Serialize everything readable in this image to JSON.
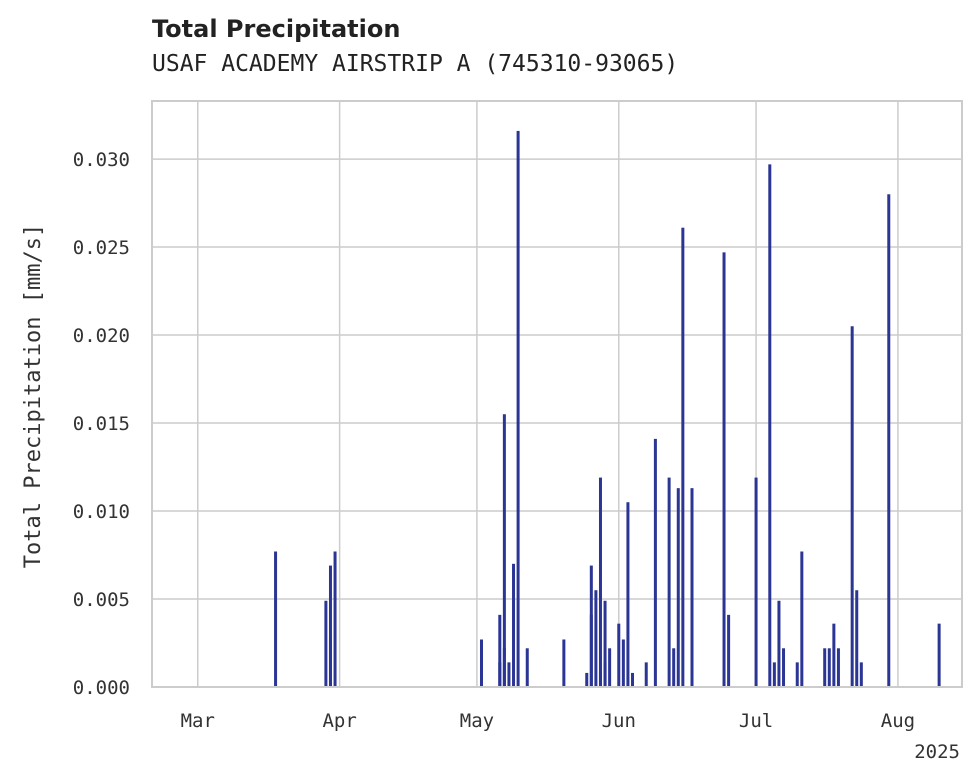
{
  "title": "Total Precipitation",
  "subtitle": "USAF ACADEMY AIRSTRIP A (745310-93065)",
  "chart_data": {
    "type": "bar",
    "ylabel": "Total Precipitation [mm/s]",
    "xlabel": "",
    "year_label": "2025",
    "xlim": [
      "2025-02-19",
      "2025-08-15"
    ],
    "ylim": [
      0,
      0.0333
    ],
    "yticks": [
      "0.000",
      "0.005",
      "0.010",
      "0.015",
      "0.020",
      "0.025",
      "0.030"
    ],
    "xticks": [
      {
        "date": "2025-03-01",
        "label": "Mar"
      },
      {
        "date": "2025-04-01",
        "label": "Apr"
      },
      {
        "date": "2025-05-01",
        "label": "May"
      },
      {
        "date": "2025-06-01",
        "label": "Jun"
      },
      {
        "date": "2025-07-01",
        "label": "Jul"
      },
      {
        "date": "2025-08-01",
        "label": "Aug"
      }
    ],
    "grid": true,
    "colors": {
      "bar": "#2b3594",
      "grid": "#cccccc",
      "frame": "#cccccc"
    },
    "series": [
      {
        "x": [
          "2025-03-18",
          "2025-03-29",
          "2025-03-30",
          "2025-03-30",
          "2025-03-31",
          "2025-05-02",
          "2025-05-06",
          "2025-05-06",
          "2025-05-07",
          "2025-05-07",
          "2025-05-08",
          "2025-05-09",
          "2025-05-10",
          "2025-05-12",
          "2025-05-20",
          "2025-05-25",
          "2025-05-26",
          "2025-05-26",
          "2025-05-27",
          "2025-05-28",
          "2025-05-28",
          "2025-05-29",
          "2025-05-29",
          "2025-05-30",
          "2025-06-01",
          "2025-06-02",
          "2025-06-03",
          "2025-06-04",
          "2025-06-07",
          "2025-06-09",
          "2025-06-12",
          "2025-06-13",
          "2025-06-14",
          "2025-06-15",
          "2025-06-17",
          "2025-06-24",
          "2025-06-25",
          "2025-07-01",
          "2025-07-04",
          "2025-07-05",
          "2025-07-06",
          "2025-07-07",
          "2025-07-10",
          "2025-07-11",
          "2025-07-16",
          "2025-07-17",
          "2025-07-18",
          "2025-07-19",
          "2025-07-22",
          "2025-07-23",
          "2025-07-24",
          "2025-07-30",
          "2025-08-10"
        ],
        "y": [
          0.0077,
          0.0049,
          0.0069,
          0.0027,
          0.0077,
          0.0027,
          0.0014,
          0.0041,
          0.0155,
          0.0022,
          0.0014,
          0.007,
          0.0316,
          0.0022,
          0.0027,
          0.0008,
          0.0069,
          0.0041,
          0.0055,
          0.0119,
          0.0008,
          0.0014,
          0.0049,
          0.0022,
          0.0036,
          0.0027,
          0.0105,
          0.0008,
          0.0014,
          0.0141,
          0.0119,
          0.0022,
          0.0113,
          0.0261,
          0.0113,
          0.0247,
          0.0041,
          0.0119,
          0.0297,
          0.0014,
          0.0049,
          0.0022,
          0.0014,
          0.0077,
          0.0022,
          0.0022,
          0.0036,
          0.0022,
          0.0205,
          0.0055,
          0.0014,
          0.028,
          0.0036
        ]
      }
    ]
  }
}
